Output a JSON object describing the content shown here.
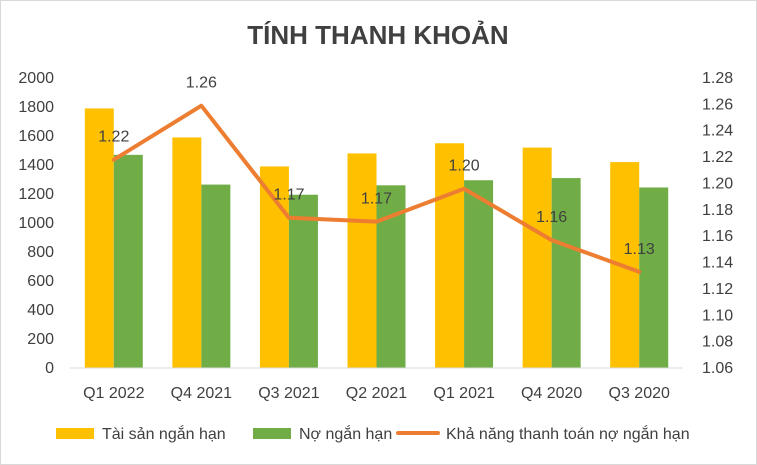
{
  "chart_data": {
    "type": "bar",
    "title": "TÍNH THANH KHOẢN",
    "categories": [
      "Q1 2022",
      "Q4 2021",
      "Q3 2021",
      "Q2 2021",
      "Q1 2021",
      "Q4 2020",
      "Q3 2020"
    ],
    "series": [
      {
        "name": "Tài sản ngắn hạn",
        "type": "bar",
        "axis": "left",
        "color": "#FFC000",
        "values": [
          1790,
          1590,
          1390,
          1480,
          1550,
          1520,
          1420
        ]
      },
      {
        "name": "Nợ ngắn hạn",
        "type": "bar",
        "axis": "left",
        "color": "#70AD47",
        "values": [
          1470,
          1265,
          1195,
          1260,
          1295,
          1310,
          1245
        ]
      },
      {
        "name": "Khả năng thanh toán nợ ngắn hạn",
        "type": "line",
        "axis": "right",
        "color": "#ED7D31",
        "values": [
          1.218,
          1.259,
          1.174,
          1.171,
          1.196,
          1.157,
          1.133
        ],
        "labels": [
          "1.22",
          "1.26",
          "1.17",
          "1.17",
          "1.20",
          "1.16",
          "1.13"
        ]
      }
    ],
    "y_left": {
      "min": 0,
      "max": 2000,
      "step": 200,
      "tick_labels": [
        "0",
        "200",
        "400",
        "600",
        "800",
        "1000",
        "1200",
        "1400",
        "1600",
        "1800",
        "2000"
      ]
    },
    "y_right": {
      "min": 1.06,
      "max": 1.28,
      "step": 0.02,
      "tick_labels": [
        "1.06",
        "1.08",
        "1.10",
        "1.12",
        "1.14",
        "1.16",
        "1.18",
        "1.20",
        "1.22",
        "1.24",
        "1.26",
        "1.28"
      ]
    },
    "grid": false,
    "legend": "bottom"
  }
}
